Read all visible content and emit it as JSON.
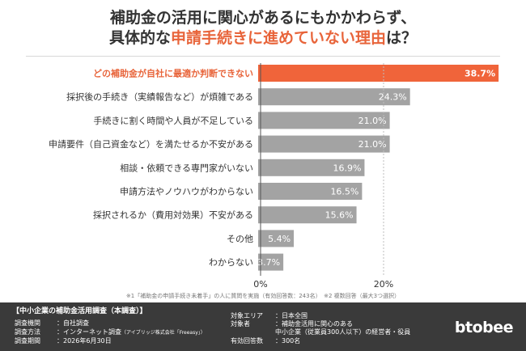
{
  "title": {
    "line1": "補助金の活用に関心があるにもかかわらず、",
    "line2_pre": "具体的な",
    "line2_highlight": "申請手続きに進めていない理由",
    "line2_post": "は？"
  },
  "chart_data": {
    "type": "bar",
    "orientation": "horizontal",
    "categories": [
      "どの補助金が自社に最適か判断できない",
      "採択後の手続き（実績報告など）が煩雑である",
      "手続きに割く時間や人員が不足している",
      "申請要件（自己資金など）を満たせるか不安がある",
      "相談・依頼できる専門家がいない",
      "申請方法やノウハウがわからない",
      "採択されるか（費用対効果）不安がある",
      "その他",
      "わからない"
    ],
    "values": [
      38.7,
      24.3,
      21.0,
      21.0,
      16.9,
      16.5,
      15.6,
      5.4,
      3.7
    ],
    "value_labels": [
      "38.7%",
      "24.3%",
      "21.0%",
      "21.0%",
      "16.9%",
      "16.5%",
      "15.6%",
      "5.4%",
      "3.7%"
    ],
    "highlight_index": 0,
    "xlim": [
      0,
      40
    ],
    "x_ticks": [
      0,
      20
    ],
    "x_tick_labels": [
      "0%",
      "20%"
    ],
    "colors": {
      "highlight": "#f0643a",
      "bar": "#a3a3a3",
      "highlight_label": "#e8643a"
    },
    "grid": false
  },
  "footnote": "※1「補助金の申請手続き未着手」の人に質問を実施（有効回答数：243名）　※2 複数回答（最大3つ選択）",
  "footer": {
    "title": "【中小企業の補助金活用調査（本調査）】",
    "left": [
      {
        "key": "調査機関",
        "value": "：自社調査"
      },
      {
        "key": "調査方法",
        "value": "：インターネット調査",
        "sub": "（アイブリッジ株式会社「Freeasy」）"
      },
      {
        "key": "調査期間",
        "value": "：2026年6月30日"
      }
    ],
    "right": [
      {
        "key": "対象エリア",
        "value": "：日本全国"
      },
      {
        "key": "対象者",
        "value": "：補助金活用に関心のある"
      },
      {
        "key": "",
        "value": "中小企業（従業員300人以下）の経営者・役員"
      },
      {
        "key": "有効回答数",
        "value": "：300名"
      }
    ],
    "brand": "btobee"
  }
}
